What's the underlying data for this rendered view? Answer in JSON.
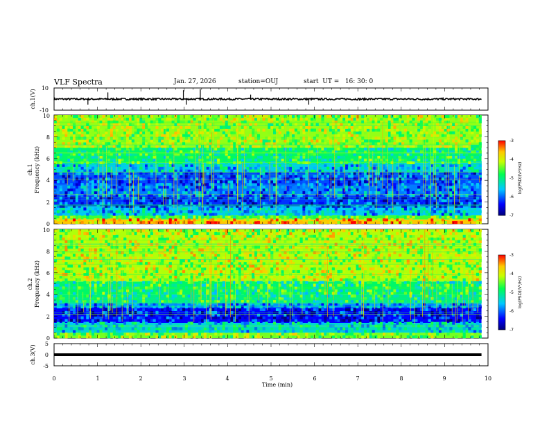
{
  "header": {
    "title": "VLF Spectra",
    "date": "Jan. 27, 2026",
    "station": "station=OUJ",
    "start": "start  UT =   16: 30: 0"
  },
  "chart_data": [
    {
      "type": "line",
      "name": "ch1-waveform",
      "ylabel": "ch.1(V)",
      "ylim": [
        -10,
        10
      ],
      "yticks": [
        "10",
        "-10"
      ],
      "xlim": [
        0,
        10
      ],
      "baseline": 0,
      "spikes": [
        {
          "x": 0.78,
          "y": -5
        },
        {
          "x": 1.24,
          "y": 6
        },
        {
          "x": 2.98,
          "y": 8
        },
        {
          "x": 3.05,
          "y": -5
        },
        {
          "x": 3.37,
          "y": 9
        },
        {
          "x": 4.53,
          "y": 4
        },
        {
          "x": 5.87,
          "y": -5
        }
      ]
    },
    {
      "type": "heatmap",
      "name": "ch1-spectrogram",
      "ylabel": "Frequency (kHz)",
      "ylabel2": "ch.1",
      "ylim": [
        0,
        10
      ],
      "yticks": [
        "0",
        "2",
        "4",
        "6",
        "8",
        "10"
      ],
      "xlim": [
        0,
        9.85
      ],
      "colorbar": {
        "label": "log(PSD)(V²/Hz)",
        "range": [
          -7,
          -3
        ],
        "ticks": [
          "-3",
          "-4",
          "-5",
          "-6",
          "-7"
        ]
      },
      "bands": [
        {
          "f0": 0,
          "f1": 0.4,
          "level": -3.6
        },
        {
          "f0": 0.4,
          "f1": 0.8,
          "level": -4.6
        },
        {
          "f0": 0.8,
          "f1": 1.6,
          "level": -5.6
        },
        {
          "f0": 1.6,
          "f1": 2.6,
          "level": -6.2
        },
        {
          "f0": 2.6,
          "f1": 3.6,
          "level": -5.9
        },
        {
          "f0": 3.6,
          "f1": 4.8,
          "level": -6.1
        },
        {
          "f0": 4.8,
          "f1": 5.6,
          "level": -5.5
        },
        {
          "f0": 5.6,
          "f1": 7.0,
          "level": -4.9
        },
        {
          "f0": 7.0,
          "f1": 10.0,
          "level": -4.3
        }
      ]
    },
    {
      "type": "heatmap",
      "name": "ch2-spectrogram",
      "ylabel": "Frequency (kHz)",
      "ylabel2": "ch.2",
      "ylim": [
        0,
        10
      ],
      "yticks": [
        "0",
        "2",
        "4",
        "6",
        "8",
        "10"
      ],
      "xlim": [
        0,
        9.85
      ],
      "colorbar": {
        "label": "log(PSD)(V²/Hz)",
        "range": [
          -7,
          -3
        ],
        "ticks": [
          "-3",
          "-4",
          "-5",
          "-6",
          "-7"
        ]
      },
      "bands": [
        {
          "f0": 0,
          "f1": 0.5,
          "level": -4.4
        },
        {
          "f0": 0.5,
          "f1": 1.4,
          "level": -5.4
        },
        {
          "f0": 1.4,
          "f1": 2.8,
          "level": -6.4
        },
        {
          "f0": 2.8,
          "f1": 3.2,
          "level": -5.8
        },
        {
          "f0": 3.2,
          "f1": 4.0,
          "level": -5.0
        },
        {
          "f0": 4.0,
          "f1": 5.2,
          "level": -4.9
        },
        {
          "f0": 5.2,
          "f1": 10.0,
          "level": -4.2
        }
      ]
    },
    {
      "type": "line",
      "name": "ch3-waveform",
      "ylabel": "ch.3(V)",
      "ylim": [
        -5,
        5
      ],
      "yticks": [
        "5",
        "0",
        "-5"
      ],
      "xlim": [
        0,
        10
      ],
      "baseline": 0
    }
  ],
  "xaxis": {
    "label": "Time (min)",
    "ticks": [
      "0",
      "1",
      "2",
      "3",
      "4",
      "5",
      "6",
      "7",
      "8",
      "9",
      "10"
    ]
  },
  "colors": {
    "frame": "#000000",
    "trace": "#000000"
  }
}
